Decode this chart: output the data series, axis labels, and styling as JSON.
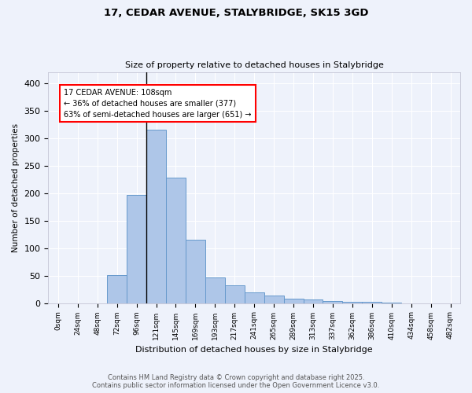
{
  "title_line1": "17, CEDAR AVENUE, STALYBRIDGE, SK15 3GD",
  "title_line2": "Size of property relative to detached houses in Stalybridge",
  "xlabel": "Distribution of detached houses by size in Stalybridge",
  "ylabel": "Number of detached properties",
  "bar_color": "#aec6e8",
  "bar_edge_color": "#6699cc",
  "bg_color": "#eef2fb",
  "grid_color": "#ffffff",
  "categories": [
    "0sqm",
    "24sqm",
    "48sqm",
    "72sqm",
    "96sqm",
    "121sqm",
    "145sqm",
    "169sqm",
    "193sqm",
    "217sqm",
    "241sqm",
    "265sqm",
    "289sqm",
    "313sqm",
    "337sqm",
    "362sqm",
    "386sqm",
    "410sqm",
    "434sqm",
    "458sqm",
    "482sqm"
  ],
  "values": [
    0,
    0,
    0,
    51,
    197,
    315,
    228,
    115,
    47,
    32,
    20,
    14,
    8,
    6,
    4,
    2,
    2,
    1,
    0,
    0,
    0
  ],
  "ylim": [
    0,
    420
  ],
  "yticks": [
    0,
    50,
    100,
    150,
    200,
    250,
    300,
    350,
    400
  ],
  "annotation_text": "17 CEDAR AVENUE: 108sqm\n← 36% of detached houses are smaller (377)\n63% of semi-detached houses are larger (651) →",
  "vline_x": 4.5,
  "footer_line1": "Contains HM Land Registry data © Crown copyright and database right 2025.",
  "footer_line2": "Contains public sector information licensed under the Open Government Licence v3.0."
}
